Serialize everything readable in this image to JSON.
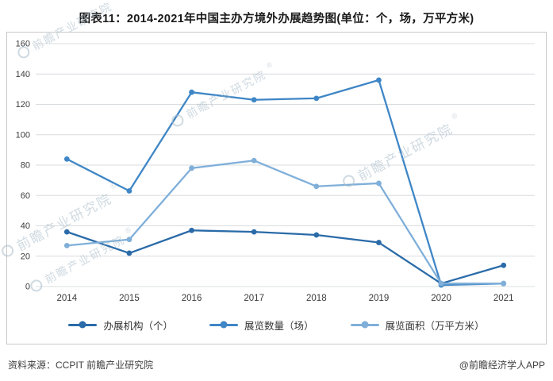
{
  "title": "图表11：2014-2021年中国主办方境外办展趋势图(单位：个，场，万平方米)",
  "footer": {
    "source": "资料来源：CCPIT 前瞻产业研究院",
    "brand": "@前瞻经济学人APP"
  },
  "watermark": {
    "text": "前瞻产业研究院",
    "reg": "®"
  },
  "colors": {
    "grid": "#d9dcdf",
    "axis_text": "#3c3c3c",
    "border": "#c9c9c9"
  },
  "chart_data": {
    "type": "line",
    "title": "图表11：2014-2021年中国主办方境外办展趋势图(单位：个，场，万平方米)",
    "categories": [
      "2014",
      "2015",
      "2016",
      "2017",
      "2018",
      "2019",
      "2020",
      "2021"
    ],
    "series": [
      {
        "name": "办展机构（个）",
        "color": "#2a6ba8",
        "values": [
          36,
          22,
          37,
          36,
          34,
          29,
          2,
          14
        ]
      },
      {
        "name": "展览数量（场）",
        "color": "#3f86c6",
        "values": [
          84,
          63,
          128,
          123,
          124,
          136,
          1,
          2
        ]
      },
      {
        "name": "展览面积（万平方米）",
        "color": "#7fafd9",
        "values": [
          27,
          31,
          78,
          83,
          66,
          68,
          2,
          2
        ]
      }
    ],
    "xlabel": "",
    "ylabel": "",
    "ylim": [
      0,
      160
    ],
    "ytick_step": 20,
    "grid": true,
    "legend_position": "bottom"
  }
}
